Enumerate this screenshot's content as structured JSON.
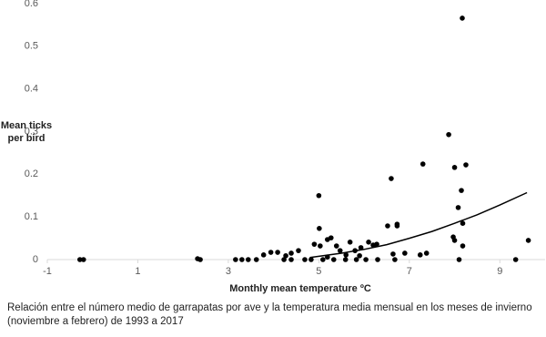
{
  "chart_data": {
    "type": "scatter",
    "ylabel": "Mean ticks per bird",
    "xlabel": "Monthly mean temperature ºC",
    "caption": "Relación entre el número medio de garrapatas por ave y la temperatura media mensual en los meses de invierno (noviembre a febrero) de 1993 a 2017",
    "color": "#000000",
    "xlim": [
      -1,
      10
    ],
    "xticks": [
      -1,
      1,
      3,
      5,
      7,
      9
    ],
    "ylim": [
      0,
      0.6
    ],
    "yticks": [
      0,
      0.1,
      0.2,
      0.3,
      0.4,
      0.5,
      0.6
    ],
    "x": [
      8.17,
      7.87,
      7.3,
      8.0,
      8.25,
      8.15,
      6.6,
      5.0,
      8.08,
      8.18,
      5.01,
      6.73,
      6.73,
      6.52,
      7.97,
      8.0,
      9.63,
      8.18,
      4.9,
      5.03,
      5.19,
      5.27,
      5.39,
      5.69,
      6.1,
      6.2,
      6.28,
      6.64,
      7.38,
      7.24,
      6.9,
      5.47,
      5.8,
      5.93,
      5.9,
      5.6,
      4.55,
      4.39,
      4.27,
      4.09,
      3.94,
      3.78,
      3.62,
      3.44,
      3.3,
      3.16,
      4.23,
      4.39,
      4.69,
      4.83,
      5.09,
      5.19,
      5.33,
      5.59,
      5.83,
      6.04,
      6.3,
      6.68,
      8.1,
      9.35,
      -0.28,
      -0.2,
      2.32,
      2.38
    ],
    "values": [
      0.566,
      0.293,
      0.224,
      0.216,
      0.222,
      0.162,
      0.19,
      0.15,
      0.122,
      0.085,
      0.073,
      0.083,
      0.079,
      0.079,
      0.053,
      0.045,
      0.045,
      0.032,
      0.036,
      0.032,
      0.047,
      0.051,
      0.032,
      0.041,
      0.041,
      0.034,
      0.036,
      0.013,
      0.015,
      0.011,
      0.015,
      0.021,
      0.021,
      0.028,
      0.009,
      0.011,
      0.021,
      0.015,
      0.009,
      0.017,
      0.017,
      0.011,
      0,
      0,
      0,
      0,
      0,
      0,
      0,
      0,
      0,
      0.006,
      0,
      0,
      0,
      0,
      0,
      0,
      0,
      0,
      0,
      0,
      0.002,
      0
    ],
    "trend": {
      "color": "#000000",
      "x": [
        4.8,
        5.5,
        6,
        6.5,
        7,
        7.5,
        8,
        8.5,
        9,
        9.6
      ],
      "values": [
        0.005,
        0.015,
        0.024,
        0.035,
        0.05,
        0.066,
        0.085,
        0.105,
        0.128,
        0.157
      ]
    }
  }
}
